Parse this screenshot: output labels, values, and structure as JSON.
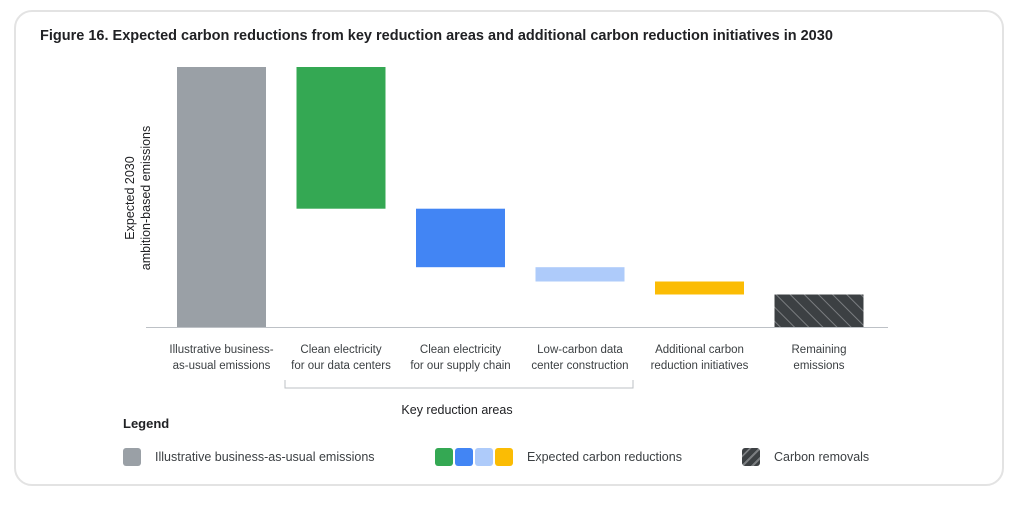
{
  "title": "Figure 16. Expected carbon reductions from key reduction areas and additional carbon reduction initiatives in 2030",
  "chart_data": {
    "type": "bar",
    "subtype": "waterfall",
    "ylabel_line1": "Expected 2030",
    "ylabel_line2": "ambition-based emissions",
    "ylim": [
      0,
      100
    ],
    "grid": false,
    "categories": [
      [
        "Illustrative business-",
        "as-usual emissions"
      ],
      [
        "Clean electricity",
        "for our data centers"
      ],
      [
        "Clean electricity",
        "for our supply chain"
      ],
      [
        "Low-carbon data",
        "center construction"
      ],
      [
        "Additional carbon",
        "reduction initiatives"
      ],
      [
        "Remaining",
        "emissions"
      ]
    ],
    "bars": [
      {
        "start": 0,
        "end": 100,
        "kind": "baseline",
        "color": "#9aa0a6"
      },
      {
        "start": 100,
        "end": 45.5,
        "kind": "reduction",
        "color": "#34a853"
      },
      {
        "start": 45.5,
        "end": 23,
        "kind": "reduction",
        "color": "#4285f4"
      },
      {
        "start": 23,
        "end": 17.5,
        "kind": "reduction",
        "color": "#aecbfa"
      },
      {
        "start": 17.5,
        "end": 12.5,
        "kind": "reduction",
        "color": "#fbbc04"
      },
      {
        "start": 12.5,
        "end": 0,
        "kind": "remaining",
        "color": "#3c4043"
      }
    ],
    "group_label": "Key reduction areas"
  },
  "legend": {
    "title": "Legend",
    "items": [
      {
        "label": "Illustrative business-as-usual emissions",
        "colors": [
          "#9aa0a6"
        ]
      },
      {
        "label": "Expected carbon reductions",
        "colors": [
          "#34a853",
          "#4285f4",
          "#aecbfa",
          "#fbbc04"
        ]
      },
      {
        "label": "Carbon removals",
        "colors": [
          "#3c4043"
        ],
        "pattern": "hatch"
      }
    ]
  }
}
